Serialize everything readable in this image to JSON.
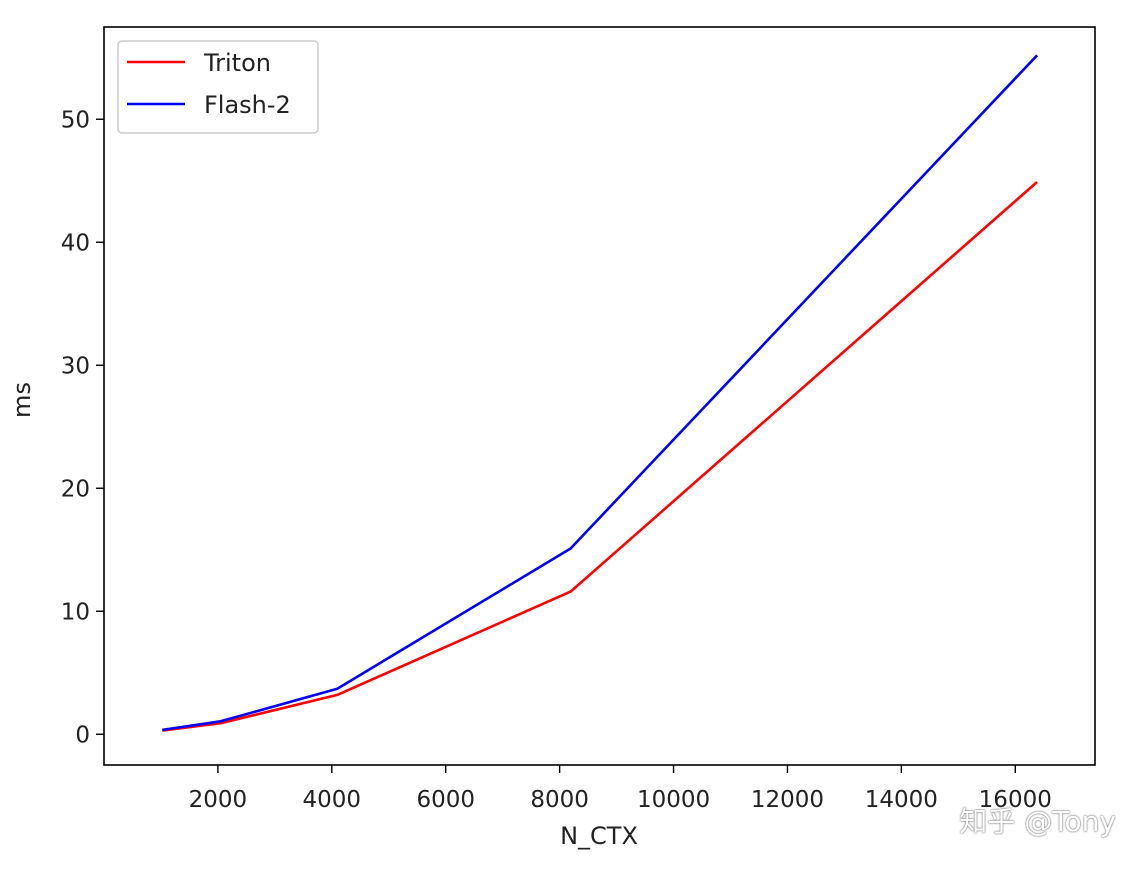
{
  "chart_data": {
    "type": "line",
    "title": "",
    "xlabel": "N_CTX",
    "ylabel": "ms",
    "x": [
      1024,
      2048,
      4096,
      8192,
      16384
    ],
    "xlim": [
      0,
      17400
    ],
    "ylim": [
      -2.5,
      57.5
    ],
    "xticks": [
      2000,
      4000,
      6000,
      8000,
      10000,
      12000,
      14000,
      16000
    ],
    "yticks": [
      0,
      10,
      20,
      30,
      40,
      50
    ],
    "grid": false,
    "legend_position": "upper-left",
    "series": [
      {
        "name": "Triton",
        "color": "#ff0000",
        "values": [
          0.3,
          0.9,
          3.2,
          11.6,
          44.9
        ]
      },
      {
        "name": "Flash-2",
        "color": "#0000ff",
        "values": [
          0.35,
          1.05,
          3.7,
          15.1,
          55.2
        ]
      }
    ]
  },
  "watermark": "知乎 @Tony"
}
